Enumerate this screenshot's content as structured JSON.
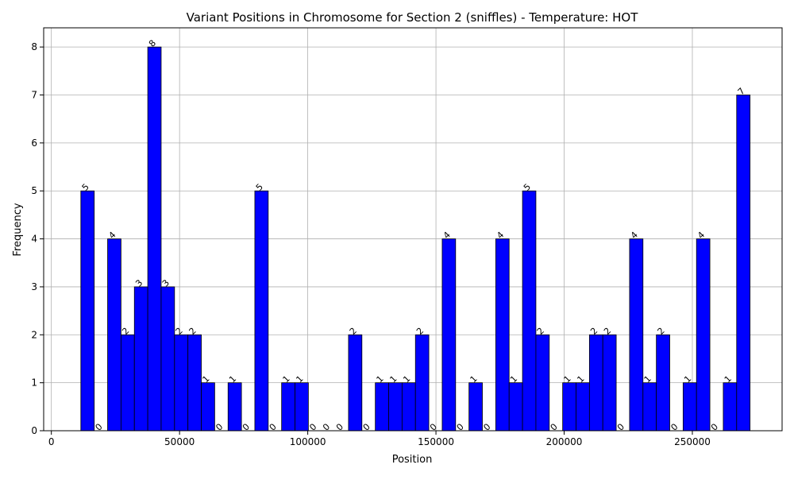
{
  "chart_data": {
    "type": "bar",
    "title": "Variant Positions in Chromosome for Section 2 (sniffles) - Temperature: HOT",
    "xlabel": "Position",
    "ylabel": "Frequency",
    "xlim": [
      -3000,
      285000
    ],
    "ylim": [
      0,
      8.4
    ],
    "x_ticks": [
      0,
      50000,
      100000,
      150000,
      200000,
      250000
    ],
    "x_tick_labels": [
      "0",
      "50000",
      "100000",
      "150000",
      "200000",
      "250000"
    ],
    "y_ticks": [
      0,
      1,
      2,
      3,
      4,
      5,
      6,
      7,
      8
    ],
    "y_tick_labels": [
      "0",
      "1",
      "2",
      "3",
      "4",
      "5",
      "6",
      "7",
      "8"
    ],
    "grid": true,
    "bar_color": "#0000ff",
    "bar_edge_color": "#000000",
    "bin_edges": [
      11500,
      16720,
      21940,
      27160,
      32380,
      37600,
      42820,
      48040,
      53260,
      58480,
      63700,
      68920,
      74140,
      79360,
      84580,
      89800,
      95020,
      100240,
      105460,
      110680,
      115900,
      121120,
      126340,
      131560,
      136780,
      142000,
      147220,
      152440,
      157660,
      162880,
      168100,
      173320,
      178540,
      183760,
      188980,
      194200,
      199420,
      204640,
      209860,
      215080,
      220300,
      225520,
      230740,
      235960,
      241180,
      246400,
      251620,
      256840,
      262060,
      267280,
      272500
    ],
    "counts": [
      5,
      0,
      4,
      2,
      3,
      8,
      3,
      2,
      2,
      1,
      0,
      1,
      0,
      5,
      0,
      1,
      1,
      0,
      0,
      0,
      2,
      0,
      1,
      1,
      1,
      2,
      0,
      4,
      0,
      1,
      0,
      4,
      1,
      5,
      2,
      0,
      1,
      1,
      2,
      2,
      0,
      4,
      1,
      2,
      0,
      1,
      4,
      0,
      1,
      7
    ],
    "bar_labels": [
      "5",
      "0",
      "4",
      "2",
      "3",
      "8",
      "3",
      "2",
      "2",
      "1",
      "0",
      "1",
      "0",
      "5",
      "0",
      "1",
      "1",
      "0",
      "0",
      "0",
      "2",
      "0",
      "1",
      "1",
      "1",
      "2",
      "0",
      "4",
      "0",
      "1",
      "0",
      "4",
      "1",
      "5",
      "2",
      "0",
      "1",
      "1",
      "2",
      "2",
      "0",
      "4",
      "1",
      "2",
      "0",
      "1",
      "4",
      "0",
      "1",
      "7"
    ]
  }
}
